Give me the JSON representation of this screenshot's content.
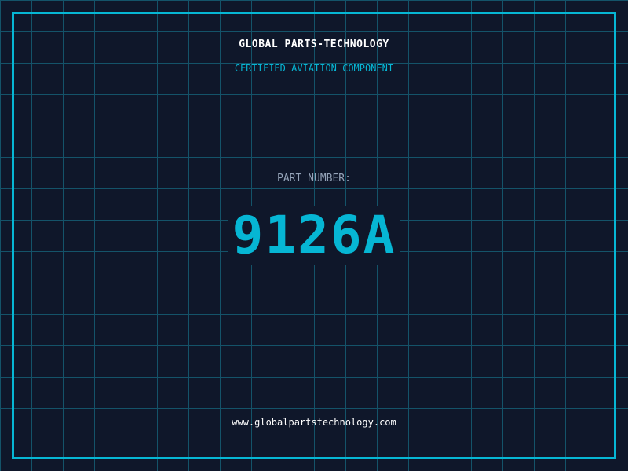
{
  "colors": {
    "background": "#0f172a",
    "accent": "#06b6d4",
    "grid": "#155e75",
    "label": "#94a3b8"
  },
  "header": {
    "company": "GLOBAL PARTS-TECHNOLOGY",
    "subtitle": "CERTIFIED AVIATION COMPONENT"
  },
  "part": {
    "label": "PART NUMBER:",
    "number": "9126A"
  },
  "footer": {
    "url": "www.globalpartstechnology.com"
  }
}
